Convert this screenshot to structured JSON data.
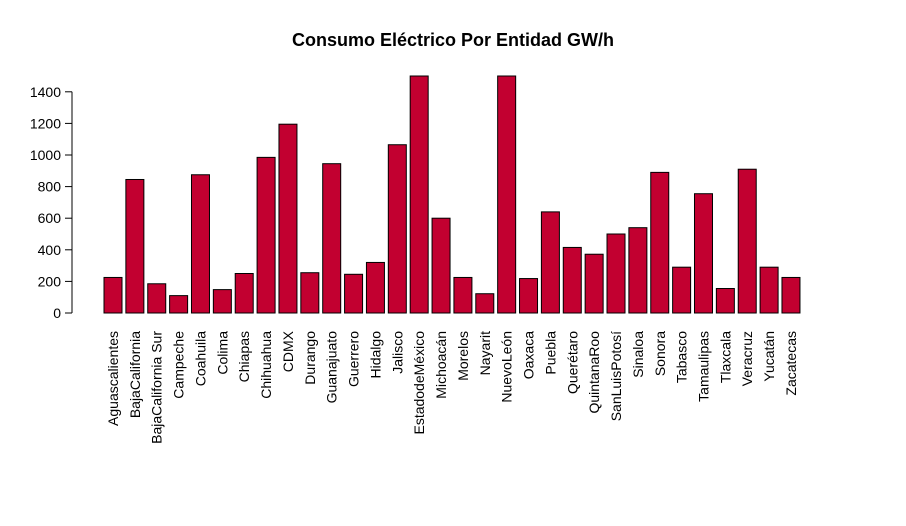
{
  "chart_data": {
    "type": "bar",
    "title": "Consumo Eléctrico Por Entidad GW/h",
    "xlabel": "",
    "ylabel": "",
    "ylim": [
      0,
      1500
    ],
    "yticks": [
      0,
      200,
      400,
      600,
      800,
      1000,
      1200,
      1400
    ],
    "bar_color": "#C20030",
    "grid": false,
    "legend": "none",
    "categories": [
      "Aguascalientes",
      "BajaCalifornia",
      "BajaCalifornia Sur",
      "Campeche",
      "Coahuila",
      "Colima",
      "Chiapas",
      "Chihuahua",
      "CDMX",
      "Durango",
      "Guanajuato",
      "Guerrero",
      "Hidalgo",
      "Jalisco",
      "EstadodeMéxico",
      "Michoacán",
      "Morelos",
      "Nayarit",
      "NuevoLeón",
      "Oaxaca",
      "Puebla",
      "Querétaro",
      "QuintanaRoo",
      "SanLuisPotosí",
      "Sinaloa",
      "Sonora",
      "Tabasco",
      "Tamaulipas",
      "Tlaxcala",
      "Veracruz",
      "Yucatán",
      "Zacatecas"
    ],
    "values": [
      225,
      845,
      185,
      110,
      875,
      148,
      250,
      985,
      1195,
      255,
      945,
      245,
      320,
      1065,
      1500,
      600,
      225,
      122,
      1500,
      218,
      640,
      415,
      372,
      500,
      540,
      890,
      290,
      755,
      155,
      910,
      290,
      225
    ]
  }
}
